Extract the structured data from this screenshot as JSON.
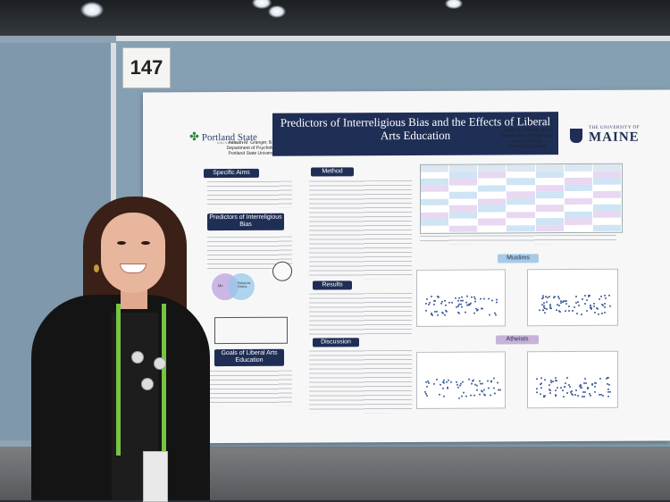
{
  "booth": {
    "number": "147"
  },
  "poster": {
    "title": "Predictors of Interreligious Bias and the Effects of Liberal Arts Education",
    "left_logo": "Portland State",
    "left_logo_sub": "UNIVERSITY",
    "right_logo_top": "THE UNIVERSITY OF",
    "right_logo_main": "MAINE",
    "author_left": "Ashwin M. Granger, B.A.",
    "author_left_dept": "Department of Psychology",
    "author_left_school": "Portland State University",
    "author_right": "Jordan P. LaBouff, Ph.D.",
    "author_right_dept": "Department of Psychology",
    "author_right_college": "Honors College",
    "author_right_school": "University of Maine",
    "sections": {
      "aims": "Specific Aims",
      "predictors": "Predictors of Interreligious Bias",
      "goals": "Goals of Liberal Arts Education",
      "method": "Method",
      "results": "Results",
      "discussion": "Discussion",
      "muslims": "Muslims",
      "atheists": "Atheists"
    },
    "venn_labels": {
      "left": "Me",
      "right": "Religious Others"
    }
  },
  "colors": {
    "navy": "#1f2e55",
    "purple": "#c7b2d8",
    "lightblue": "#a7cbe6",
    "lanyard": "#76c442"
  }
}
